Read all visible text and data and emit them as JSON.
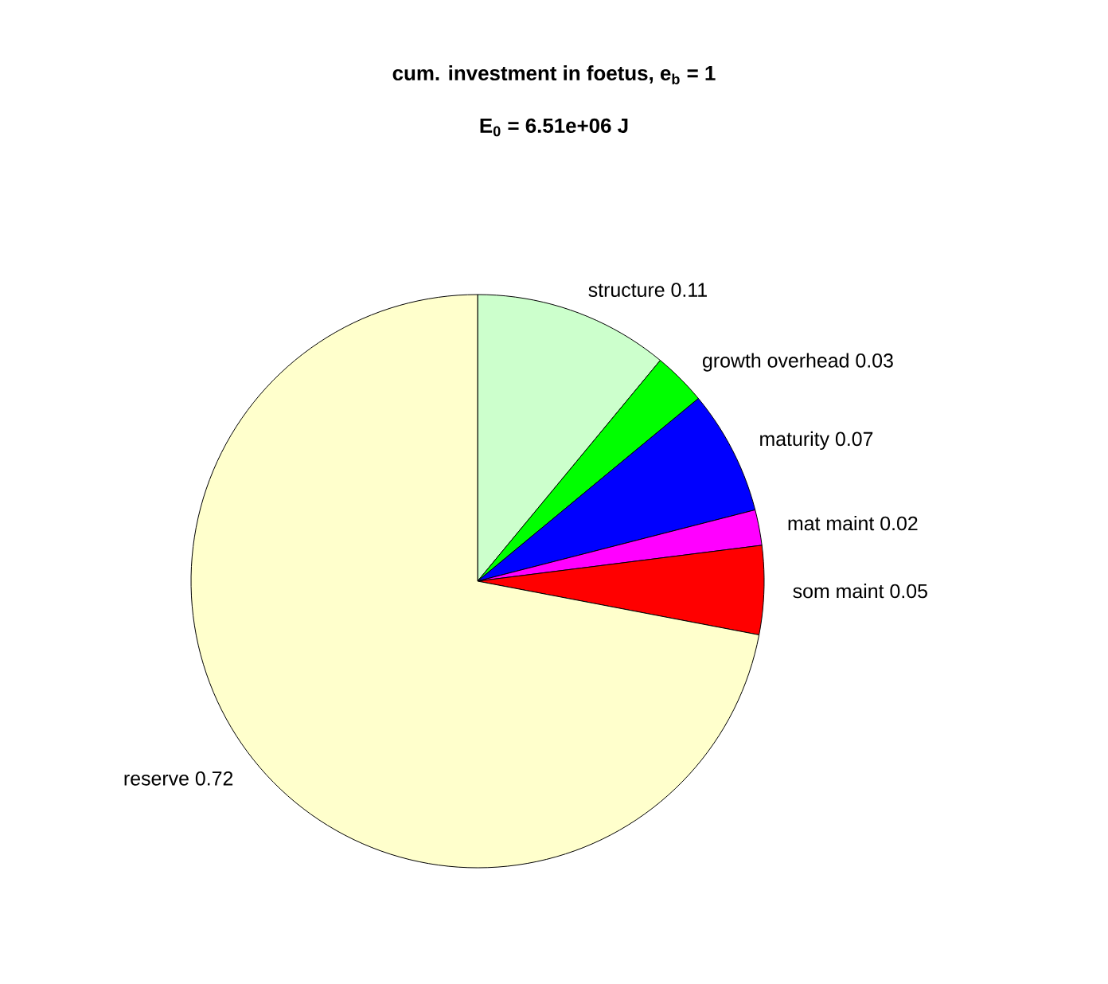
{
  "chart_data": {
    "type": "pie",
    "title": "cum. investment in foetus, e$_{b}$ = 1",
    "subtitle": "E$_{0}$ = 6.51e+06 J",
    "categories": [
      "structure",
      "growth overhead",
      "maturity",
      "mat maint",
      "som maint",
      "reserve"
    ],
    "values": [
      0.11,
      0.03,
      0.07,
      0.02,
      0.05,
      0.72
    ],
    "colors": [
      "#ccffcc",
      "#00ff00",
      "#0000ff",
      "#ff00ff",
      "#ff0000",
      "#ffffcc"
    ],
    "data_labels": true
  }
}
